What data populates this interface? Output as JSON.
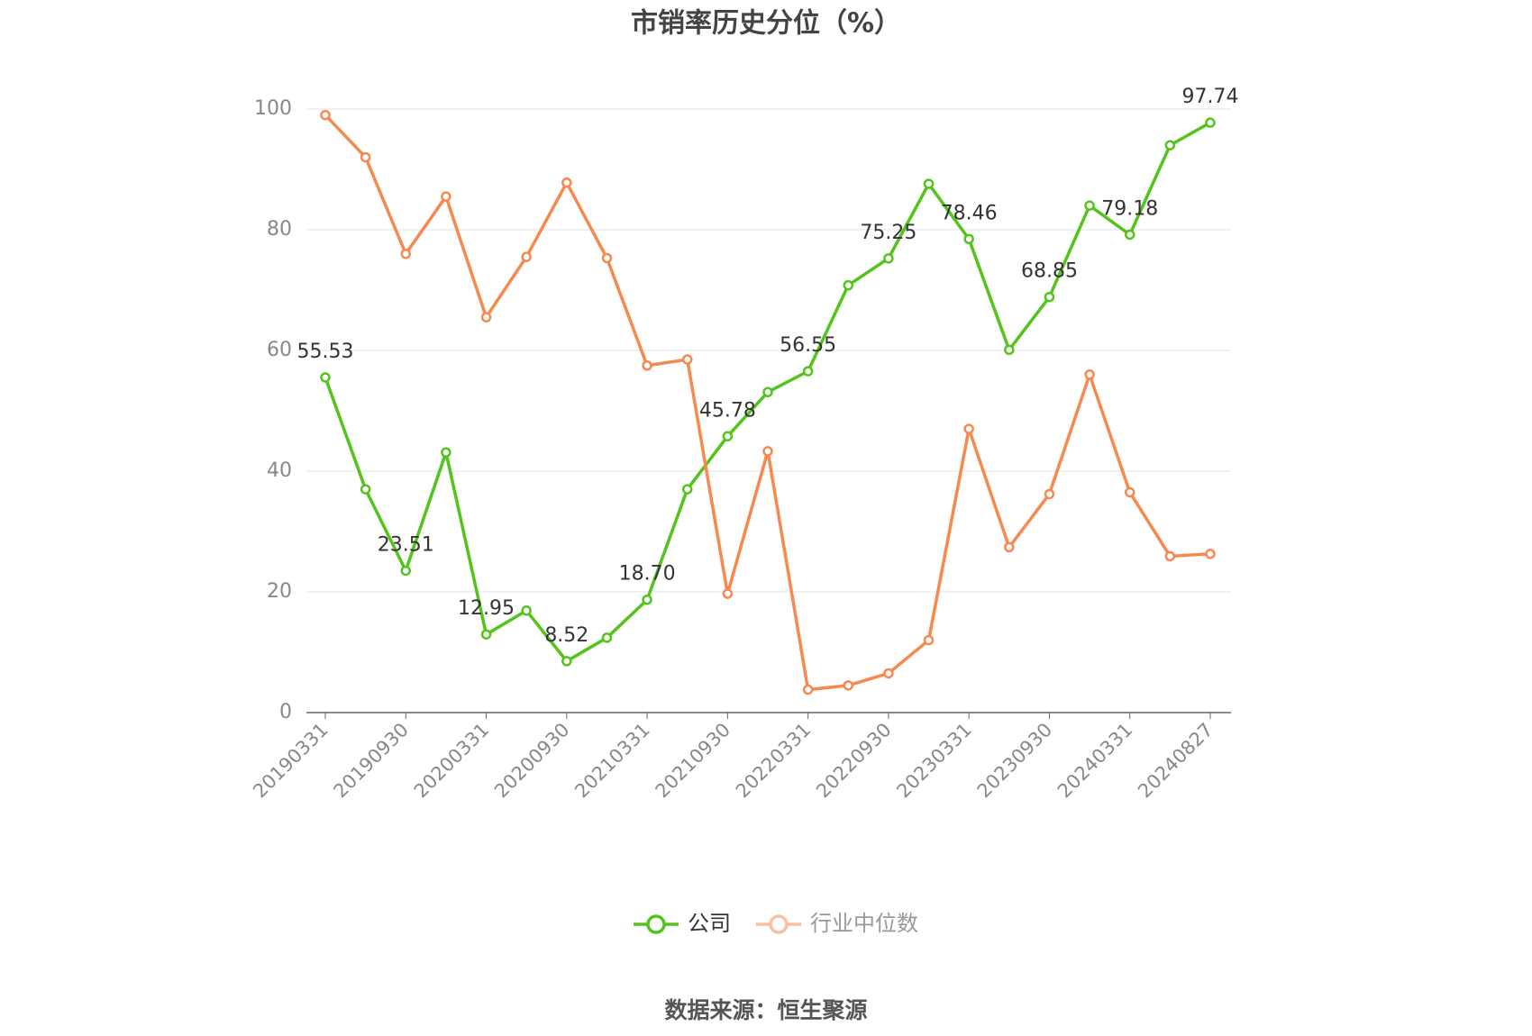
{
  "chart_data": {
    "type": "line",
    "title": "市销率历史分位（%）",
    "categories": [
      "20190331",
      null,
      "20190930",
      null,
      "20200331",
      null,
      "20200930",
      null,
      "20210331",
      null,
      "20210930",
      null,
      "20220331",
      null,
      "20220930",
      null,
      "20230331",
      null,
      "20230930",
      null,
      "20240331",
      null,
      "20240827"
    ],
    "series": [
      {
        "name": "公司",
        "color": "#52c41a",
        "values": [
          55.53,
          37,
          23.51,
          43.1,
          12.95,
          16.9,
          8.52,
          12.4,
          18.7,
          37,
          45.78,
          53.1,
          56.55,
          70.8,
          75.25,
          87.6,
          78.46,
          60.1,
          68.85,
          84,
          79.18,
          94,
          97.74
        ],
        "value_labels": [
          "55.53",
          null,
          "23.51",
          null,
          "12.95",
          null,
          "8.52",
          null,
          "18.70",
          null,
          "45.78",
          null,
          "56.55",
          null,
          "75.25",
          null,
          "78.46",
          null,
          "68.85",
          null,
          "79.18",
          null,
          "97.74"
        ]
      },
      {
        "name": "行业中位数",
        "color": "#f5894f",
        "values": [
          99,
          92,
          76,
          85.5,
          65.5,
          75.5,
          87.8,
          75.3,
          57.5,
          58.5,
          19.7,
          43.3,
          3.8,
          4.5,
          6.5,
          12,
          47,
          27.4,
          36.2,
          56,
          36.5,
          25.9,
          26.3
        ]
      }
    ],
    "ylim": [
      0,
      100
    ],
    "yticks": [
      0,
      20,
      40,
      60,
      80,
      100
    ],
    "grid": true,
    "source": "数据来源：恒生聚源"
  }
}
